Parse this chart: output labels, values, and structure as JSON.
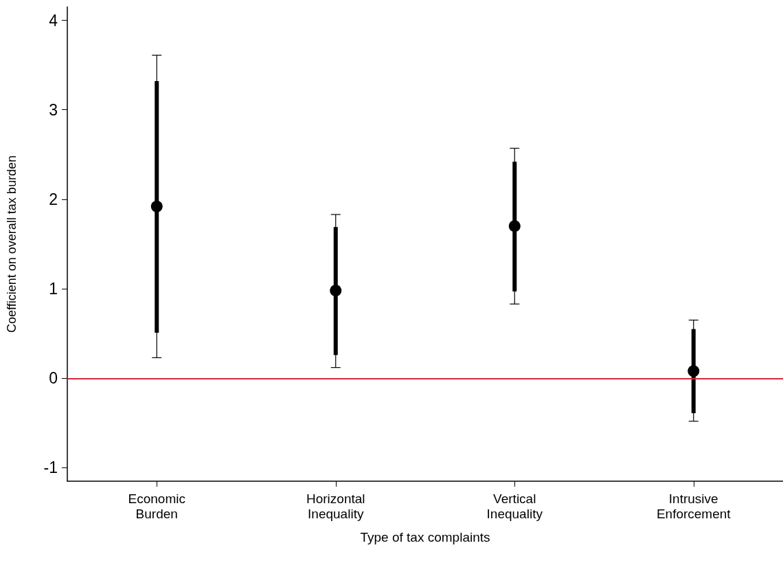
{
  "chart_data": {
    "type": "scatter",
    "xlabel": "Type of tax complaints",
    "ylabel": "Coefficient on overall tax burden",
    "categories": [
      "Economic\nBurden",
      "Horizontal\nInequality",
      "Vertical\nInequality",
      "Intrusive\nEnforcement"
    ],
    "series": [
      {
        "type": "bar",
        "color": "#000000",
        "base": [
          0.51,
          0.26,
          0.97,
          -0.39
        ],
        "values": [
          2.81,
          1.43,
          1.45,
          0.94
        ]
      },
      {
        "color": "#000000",
        "marker": "circle",
        "values": [
          1.92,
          0.98,
          1.7,
          0.08
        ],
        "errors": [
          [
            0.23,
            3.61
          ],
          [
            0.12,
            1.83
          ],
          [
            0.83,
            2.57
          ],
          [
            -0.48,
            0.65
          ]
        ]
      }
    ],
    "ylim": [
      -1.15,
      4.15
    ],
    "yticks": [
      -1,
      0,
      1,
      2,
      3,
      4
    ],
    "grid": false,
    "ref_lines": [
      {
        "axis": "y",
        "value": 0,
        "color": "#d2283c"
      }
    ]
  }
}
